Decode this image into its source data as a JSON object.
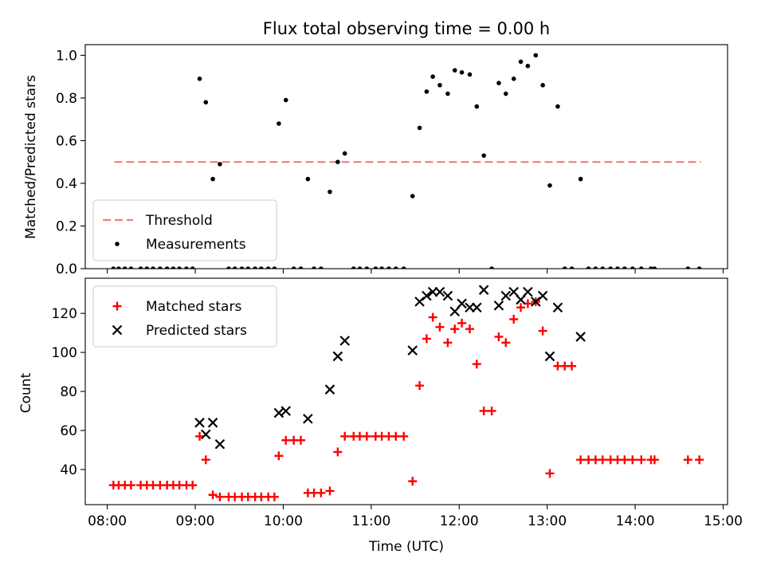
{
  "chart_data": [
    {
      "type": "scatter",
      "title": "Flux total observing time = 0.00 h",
      "xlabel": "",
      "ylabel": "Matched/Predicted stars",
      "xlim": [
        7.75,
        15.05
      ],
      "ylim": [
        0,
        1.05
      ],
      "yticks": [
        0.0,
        0.2,
        0.4,
        0.6,
        0.8,
        1.0
      ],
      "ytick_labels": [
        "0.0",
        "0.2",
        "0.4",
        "0.6",
        "0.8",
        "1.0"
      ],
      "xticks": [
        8,
        9,
        10,
        11,
        12,
        13,
        14,
        15
      ],
      "legend_position": "lower-left",
      "threshold": {
        "name": "Threshold",
        "value": 0.5,
        "x_range": [
          8.08,
          14.75
        ],
        "color": "#f77a7a"
      },
      "series": [
        {
          "name": "Measurements",
          "color": "#000000",
          "marker": "dot",
          "points": [
            [
              8.07,
              0
            ],
            [
              8.13,
              0
            ],
            [
              8.2,
              0
            ],
            [
              8.27,
              0
            ],
            [
              8.38,
              0
            ],
            [
              8.45,
              0
            ],
            [
              8.52,
              0
            ],
            [
              8.6,
              0
            ],
            [
              8.68,
              0
            ],
            [
              8.75,
              0
            ],
            [
              8.82,
              0
            ],
            [
              8.9,
              0
            ],
            [
              8.97,
              0
            ],
            [
              9.05,
              0.89
            ],
            [
              9.12,
              0.78
            ],
            [
              9.2,
              0.42
            ],
            [
              9.28,
              0.49
            ],
            [
              9.38,
              0
            ],
            [
              9.45,
              0
            ],
            [
              9.53,
              0
            ],
            [
              9.6,
              0
            ],
            [
              9.68,
              0
            ],
            [
              9.75,
              0
            ],
            [
              9.83,
              0
            ],
            [
              9.9,
              0
            ],
            [
              9.95,
              0.68
            ],
            [
              10.03,
              0.79
            ],
            [
              10.12,
              0
            ],
            [
              10.2,
              0
            ],
            [
              10.28,
              0.42
            ],
            [
              10.35,
              0
            ],
            [
              10.43,
              0
            ],
            [
              10.53,
              0.36
            ],
            [
              10.62,
              0.5
            ],
            [
              10.7,
              0.54
            ],
            [
              10.8,
              0
            ],
            [
              10.87,
              0
            ],
            [
              10.95,
              0
            ],
            [
              11.05,
              0
            ],
            [
              11.12,
              0
            ],
            [
              11.2,
              0
            ],
            [
              11.28,
              0
            ],
            [
              11.37,
              0
            ],
            [
              11.47,
              0.34
            ],
            [
              11.55,
              0.66
            ],
            [
              11.63,
              0.83
            ],
            [
              11.7,
              0.9
            ],
            [
              11.78,
              0.86
            ],
            [
              11.87,
              0.82
            ],
            [
              11.95,
              0.93
            ],
            [
              12.03,
              0.92
            ],
            [
              12.12,
              0.91
            ],
            [
              12.2,
              0.76
            ],
            [
              12.28,
              0.53
            ],
            [
              12.37,
              0
            ],
            [
              12.45,
              0.87
            ],
            [
              12.53,
              0.82
            ],
            [
              12.62,
              0.89
            ],
            [
              12.7,
              0.97
            ],
            [
              12.78,
              0.95
            ],
            [
              12.87,
              1.0
            ],
            [
              12.95,
              0.86
            ],
            [
              13.03,
              0.39
            ],
            [
              13.12,
              0.76
            ],
            [
              13.2,
              0
            ],
            [
              13.28,
              0
            ],
            [
              13.38,
              0.42
            ],
            [
              13.47,
              0
            ],
            [
              13.55,
              0
            ],
            [
              13.63,
              0
            ],
            [
              13.72,
              0
            ],
            [
              13.8,
              0
            ],
            [
              13.88,
              0
            ],
            [
              13.97,
              0
            ],
            [
              14.07,
              0
            ],
            [
              14.18,
              0
            ],
            [
              14.22,
              0
            ],
            [
              14.6,
              0
            ],
            [
              14.73,
              0
            ]
          ]
        }
      ]
    },
    {
      "type": "scatter",
      "title": "",
      "xlabel": "Time (UTC)",
      "ylabel": "Count",
      "xlim": [
        7.75,
        15.05
      ],
      "ylim": [
        22,
        138
      ],
      "yticks": [
        40,
        60,
        80,
        100,
        120
      ],
      "ytick_labels": [
        "40",
        "60",
        "80",
        "100",
        "120"
      ],
      "xticks": [
        8,
        9,
        10,
        11,
        12,
        13,
        14,
        15
      ],
      "xtick_labels": [
        "08:00",
        "09:00",
        "10:00",
        "11:00",
        "12:00",
        "13:00",
        "14:00",
        "15:00"
      ],
      "legend_position": "upper-left",
      "series": [
        {
          "name": "Matched stars",
          "color": "#ff0000",
          "marker": "plus",
          "points": [
            [
              8.07,
              32
            ],
            [
              8.13,
              32
            ],
            [
              8.2,
              32
            ],
            [
              8.27,
              32
            ],
            [
              8.38,
              32
            ],
            [
              8.45,
              32
            ],
            [
              8.52,
              32
            ],
            [
              8.6,
              32
            ],
            [
              8.68,
              32
            ],
            [
              8.75,
              32
            ],
            [
              8.82,
              32
            ],
            [
              8.9,
              32
            ],
            [
              8.97,
              32
            ],
            [
              9.05,
              57
            ],
            [
              9.12,
              45
            ],
            [
              9.2,
              27
            ],
            [
              9.28,
              26
            ],
            [
              9.38,
              26
            ],
            [
              9.45,
              26
            ],
            [
              9.53,
              26
            ],
            [
              9.6,
              26
            ],
            [
              9.68,
              26
            ],
            [
              9.75,
              26
            ],
            [
              9.83,
              26
            ],
            [
              9.9,
              26
            ],
            [
              9.95,
              47
            ],
            [
              10.03,
              55
            ],
            [
              10.12,
              55
            ],
            [
              10.2,
              55
            ],
            [
              10.28,
              28
            ],
            [
              10.35,
              28
            ],
            [
              10.43,
              28
            ],
            [
              10.53,
              29
            ],
            [
              10.62,
              49
            ],
            [
              10.7,
              57
            ],
            [
              10.8,
              57
            ],
            [
              10.87,
              57
            ],
            [
              10.95,
              57
            ],
            [
              11.05,
              57
            ],
            [
              11.12,
              57
            ],
            [
              11.2,
              57
            ],
            [
              11.28,
              57
            ],
            [
              11.37,
              57
            ],
            [
              11.47,
              34
            ],
            [
              11.55,
              83
            ],
            [
              11.63,
              107
            ],
            [
              11.7,
              118
            ],
            [
              11.78,
              113
            ],
            [
              11.87,
              105
            ],
            [
              11.95,
              112
            ],
            [
              12.03,
              115
            ],
            [
              12.12,
              112
            ],
            [
              12.2,
              94
            ],
            [
              12.28,
              70
            ],
            [
              12.37,
              70
            ],
            [
              12.45,
              108
            ],
            [
              12.53,
              105
            ],
            [
              12.62,
              117
            ],
            [
              12.7,
              123
            ],
            [
              12.78,
              125
            ],
            [
              12.87,
              126
            ],
            [
              12.95,
              111
            ],
            [
              13.03,
              38
            ],
            [
              13.12,
              93
            ],
            [
              13.2,
              93
            ],
            [
              13.28,
              93
            ],
            [
              13.38,
              45
            ],
            [
              13.47,
              45
            ],
            [
              13.55,
              45
            ],
            [
              13.63,
              45
            ],
            [
              13.72,
              45
            ],
            [
              13.8,
              45
            ],
            [
              13.88,
              45
            ],
            [
              13.97,
              45
            ],
            [
              14.07,
              45
            ],
            [
              14.18,
              45
            ],
            [
              14.22,
              45
            ],
            [
              14.6,
              45
            ],
            [
              14.73,
              45
            ]
          ]
        },
        {
          "name": "Predicted stars",
          "color": "#000000",
          "marker": "x",
          "points": [
            [
              9.05,
              64
            ],
            [
              9.12,
              58
            ],
            [
              9.2,
              64
            ],
            [
              9.28,
              53
            ],
            [
              9.95,
              69
            ],
            [
              10.03,
              70
            ],
            [
              10.28,
              66
            ],
            [
              10.53,
              81
            ],
            [
              10.62,
              98
            ],
            [
              10.7,
              106
            ],
            [
              11.47,
              101
            ],
            [
              11.55,
              126
            ],
            [
              11.63,
              129
            ],
            [
              11.7,
              131
            ],
            [
              11.78,
              131
            ],
            [
              11.87,
              129
            ],
            [
              11.95,
              121
            ],
            [
              12.03,
              125
            ],
            [
              12.12,
              123
            ],
            [
              12.2,
              123
            ],
            [
              12.28,
              132
            ],
            [
              12.45,
              124
            ],
            [
              12.53,
              129
            ],
            [
              12.62,
              131
            ],
            [
              12.7,
              127
            ],
            [
              12.78,
              131
            ],
            [
              12.87,
              126
            ],
            [
              12.95,
              129
            ],
            [
              13.03,
              98
            ],
            [
              13.12,
              123
            ],
            [
              13.38,
              108
            ]
          ]
        }
      ]
    }
  ]
}
